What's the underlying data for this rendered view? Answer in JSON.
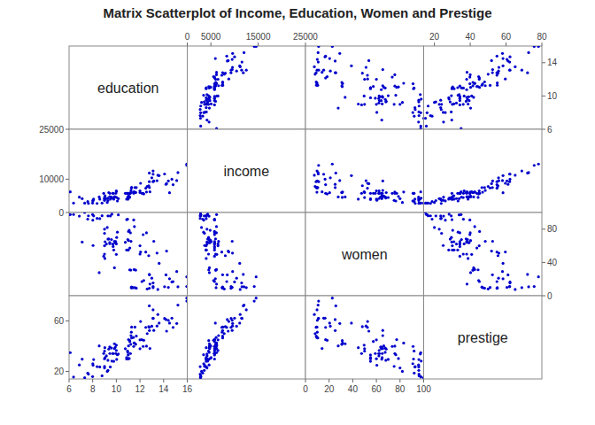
{
  "chart_data": {
    "type": "scatter_matrix",
    "title": "Matrix Scatterplot of Income, Education, Women and Prestige",
    "color": "#0000CC",
    "series": [
      {
        "name": "education",
        "values": [
          13.11,
          12.79,
          12.05,
          6.1,
          6.87,
          9.03,
          11.27,
          13.0,
          15.96,
          11.57,
          9.84,
          13.62,
          10.17,
          14.8,
          14.7,
          8.55,
          12.8,
          13.17,
          11.03,
          8.37,
          11.24,
          14.25,
          13.11,
          15.96,
          15.11,
          14.4,
          14.5,
          11.13,
          8.08,
          9.49,
          11.64,
          12.49,
          7.11,
          8.01,
          9.45,
          9.36,
          11.03,
          10.09,
          11.14,
          9.16,
          11.22,
          6.38,
          9.05,
          12.74,
          8.6,
          11.44,
          11.53,
          7.64,
          10.95,
          10.97,
          12.84,
          11.47,
          9.62,
          7.99,
          10.0,
          12.16,
          12.32,
          9.29,
          11.09,
          10.87,
          12.61,
          12.79,
          11.69,
          7.58,
          9.84,
          9.91,
          9.59,
          14.08,
          10.76,
          11.29,
          8.03,
          9.44,
          13.11,
          7.32,
          12.55,
          14.2,
          11.29,
          8.79,
          8.93,
          9.73,
          11.5,
          12.27,
          11.19,
          13.44,
          9.23,
          10.03,
          12.0,
          9.95,
          9.71,
          13.51,
          10.0,
          9.0,
          9.0,
          9.78,
          9.0,
          9.29,
          9.0,
          10.87,
          11.0,
          12.0,
          15.21,
          11.0
        ],
        "xlim": [
          6,
          16
        ],
        "ylim": [
          6,
          16
        ],
        "xticks": [
          6,
          8,
          10,
          12,
          14,
          16
        ],
        "y2ticks": [
          6,
          10,
          14
        ]
      },
      {
        "name": "income",
        "values": [
          9271,
          11855,
          8780,
          6197,
          4611,
          4011,
          7382,
          10432,
          14163,
          7482,
          4686,
          11093,
          4171,
          8351,
          10000,
          4681,
          7482,
          9499,
          5765,
          2729,
          6625,
          8659,
          12488,
          14558,
          9593,
          9500,
          5944,
          4542,
          4036,
          4022,
          6017,
          7299,
          4171,
          3485,
          5765,
          5982,
          4964,
          3456,
          5765,
          4194,
          6017,
          2849,
          5044,
          8049,
          4009,
          6098,
          6173,
          2730,
          5765,
          4641,
          6197,
          5765,
          4322,
          2828,
          6500,
          5765,
          5565,
          3588,
          4845,
          5765,
          7820,
          9250,
          7482,
          3270,
          4745,
          4722,
          4645,
          11567,
          5765,
          7482,
          3680,
          4778,
          11500,
          2800,
          6168,
          8468,
          7482,
          2850,
          5765,
          5765,
          6173,
          5765,
          5765,
          9566,
          3020,
          4500,
          6500,
          5765,
          5765,
          11187,
          6250,
          4500,
          4000,
          4000,
          4171,
          4322,
          3645,
          4000,
          5765,
          6000,
          12000,
          4000
        ],
        "xlim": [
          0,
          25000
        ],
        "ylim": [
          0,
          25000
        ],
        "yticks": [
          0,
          10000,
          25000
        ],
        "x2ticks": [
          0,
          5000,
          15000,
          25000
        ]
      },
      {
        "name": "women",
        "values": [
          11.16,
          25.65,
          52.55,
          97.51,
          95.7,
          44.71,
          9.96,
          21.04,
          11.13,
          9.74,
          33.57,
          38.89,
          97.16,
          17.04,
          16.56,
          27.71,
          25.17,
          65.41,
          77.17,
          92.86,
          65.37,
          53.62,
          9.78,
          22.7,
          29.02,
          10.0,
          20.42,
          31.12,
          95.93,
          95.85,
          30.78,
          52.44,
          64.55,
          90.8,
          62.5,
          68.32,
          66.27,
          76.42,
          57.41,
          62.13,
          30.78,
          97.59,
          64.89,
          48.13,
          92.61,
          9.68,
          83.08,
          96.0,
          91.89,
          67.44,
          14.06,
          91.03,
          97.9,
          97.51,
          62.31,
          17.04,
          18.35,
          95.88,
          78.66,
          91.43,
          8.17,
          9.0,
          9.1,
          92.0,
          65.41,
          63.54,
          67.57,
          10.82,
          64.16,
          9.32,
          60.39,
          64.1,
          15.38,
          100.0,
          75.58,
          25.11,
          10.42,
          96.11,
          47.47,
          59.09,
          31.43,
          73.41,
          75.62,
          51.21,
          82.0,
          70.0,
          60.0,
          65.0,
          62.0,
          7.52,
          49.64,
          50.0,
          60.0,
          55.0,
          80.0,
          68.0,
          75.0,
          55.0,
          55.0,
          50.0,
          10.67,
          55.0
        ],
        "xlim": [
          0,
          100
        ],
        "ylim": [
          0,
          100
        ],
        "xticks": [
          0,
          20,
          40,
          60,
          80,
          100
        ],
        "y2ticks": [
          0,
          40,
          80
        ]
      },
      {
        "name": "prestige",
        "values": [
          62.0,
          72.0,
          59.6,
          34.9,
          25.1,
          38.8,
          51.1,
          55.8,
          75.7,
          55.1,
          41.9,
          58.3,
          33.8,
          54.9,
          62.2,
          40.2,
          52.4,
          52.5,
          45.2,
          23.8,
          48.4,
          51.9,
          68.8,
          78.1,
          58.0,
          60.5,
          58.3,
          44.4,
          29.4,
          23.5,
          41.5,
          54.9,
          29.7,
          26.1,
          34.2,
          37.7,
          40.2,
          33.2,
          43.7,
          32.3,
          41.5,
          15.5,
          30.9,
          55.5,
          23.5,
          46.9,
          42.5,
          17.8,
          36.2,
          35.1,
          38.2,
          39.8,
          28.2,
          15.9,
          36.6,
          45.1,
          44.7,
          20.8,
          30.2,
          29.8,
          50.0,
          54.9,
          48.0,
          18.7,
          38.1,
          39.2,
          38.5,
          62.0,
          38.0,
          55.1,
          24.9,
          39.4,
          62.2,
          15.0,
          40.0,
          61.1,
          46.5,
          16.5,
          34.2,
          34.2,
          42.5,
          39.8,
          34.2,
          56.0,
          20.0,
          29.5,
          45.0,
          34.2,
          34.2,
          65.1,
          40.8,
          36.1,
          30.0,
          28.0,
          22.7,
          28.8,
          24.0,
          31.0,
          33.0,
          38.0,
          72.6,
          30.0
        ],
        "xlim": [
          14,
          80
        ],
        "ylim": [
          14,
          80
        ],
        "yticks": [
          20,
          60
        ],
        "x2ticks": [
          20,
          40,
          60,
          80
        ]
      }
    ]
  }
}
